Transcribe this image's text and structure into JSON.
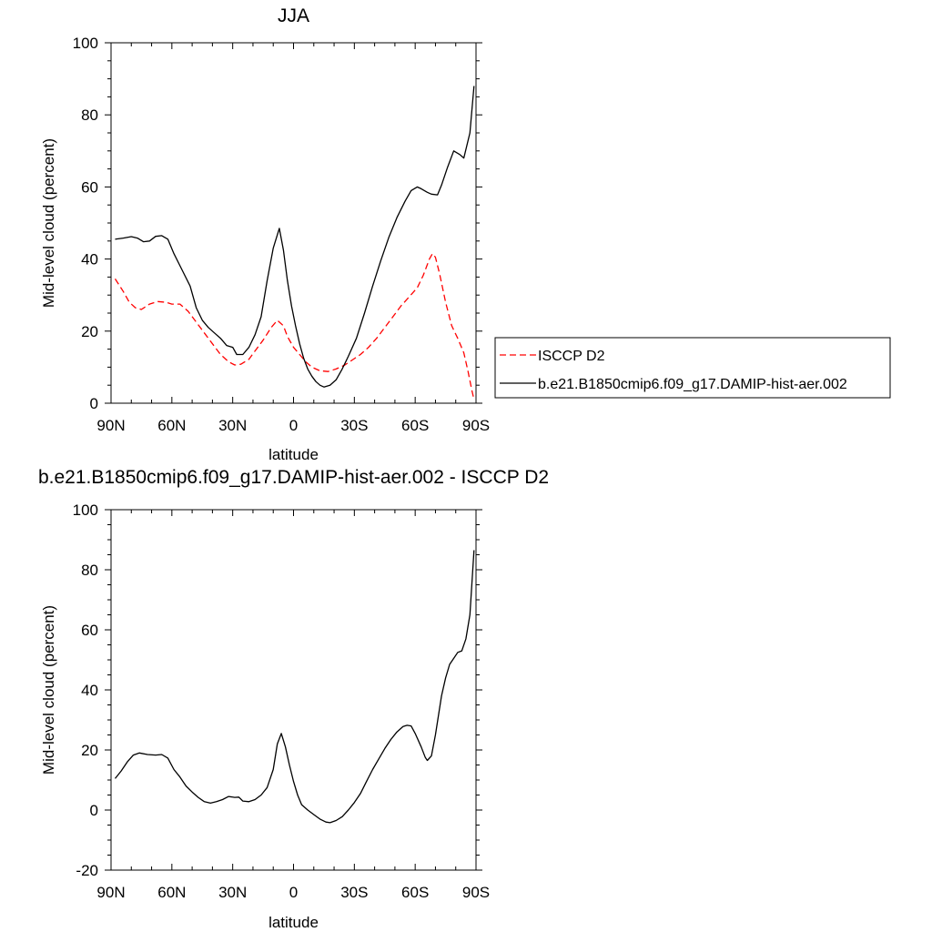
{
  "chart_data": [
    {
      "type": "line",
      "title": "JJA",
      "xlabel": "latitude",
      "ylabel": "Mid-level cloud (percent)",
      "xlim": [
        90,
        -90
      ],
      "ylim": [
        0,
        100
      ],
      "xticks": [
        90,
        60,
        30,
        0,
        -30,
        -60,
        -90
      ],
      "xtick_labels": [
        "90N",
        "60N",
        "30N",
        "0",
        "30S",
        "60S",
        "90S"
      ],
      "yticks": [
        0,
        20,
        40,
        60,
        80,
        100
      ],
      "ytick_labels": [
        "0",
        "20",
        "40",
        "60",
        "80",
        "100"
      ],
      "grid": false,
      "legend_position": "right",
      "series": [
        {
          "name": "ISCCP D2",
          "color": "#ff0000",
          "dash": "dashed",
          "points": [
            [
              88,
              34.5
            ],
            [
              84,
              31
            ],
            [
              81,
              28
            ],
            [
              78,
              26.5
            ],
            [
              75,
              26
            ],
            [
              71,
              27.5
            ],
            [
              67,
              28.2
            ],
            [
              63,
              28
            ],
            [
              60,
              27.5
            ],
            [
              56,
              27.5
            ],
            [
              52,
              25.5
            ],
            [
              48,
              22.5
            ],
            [
              44,
              19.5
            ],
            [
              40,
              16.5
            ],
            [
              36,
              13.5
            ],
            [
              32,
              11.5
            ],
            [
              29,
              10.6
            ],
            [
              26,
              10.8
            ],
            [
              22,
              12.2
            ],
            [
              19,
              14.5
            ],
            [
              15,
              17.5
            ],
            [
              11,
              21
            ],
            [
              8,
              23
            ],
            [
              5,
              21.5
            ],
            [
              3,
              18.5
            ],
            [
              0,
              15.5
            ],
            [
              -3,
              13.5
            ],
            [
              -6,
              11.5
            ],
            [
              -9,
              10
            ],
            [
              -13,
              9
            ],
            [
              -17,
              8.8
            ],
            [
              -21,
              9.5
            ],
            [
              -25,
              10.5
            ],
            [
              -29,
              12
            ],
            [
              -33,
              13.5
            ],
            [
              -37,
              15.5
            ],
            [
              -41,
              18
            ],
            [
              -45,
              21
            ],
            [
              -49,
              24
            ],
            [
              -53,
              27
            ],
            [
              -57,
              29.5
            ],
            [
              -61,
              32
            ],
            [
              -64,
              35.5
            ],
            [
              -67,
              40
            ],
            [
              -68.5,
              41.5
            ],
            [
              -70,
              40.5
            ],
            [
              -72,
              36
            ],
            [
              -75,
              28
            ],
            [
              -78,
              21.5
            ],
            [
              -81,
              18
            ],
            [
              -84,
              14
            ],
            [
              -86,
              9
            ],
            [
              -88,
              3.5
            ],
            [
              -89,
              1
            ]
          ]
        },
        {
          "name": "b.e21.B1850cmip6.f09_g17.DAMIP-hist-aer.002",
          "color": "#000000",
          "dash": "solid",
          "points": [
            [
              88,
              45.5
            ],
            [
              84,
              45.8
            ],
            [
              80,
              46.2
            ],
            [
              77,
              45.8
            ],
            [
              74,
              44.8
            ],
            [
              71,
              45
            ],
            [
              68,
              46.3
            ],
            [
              65,
              46.5
            ],
            [
              62,
              45.5
            ],
            [
              59,
              41.5
            ],
            [
              55,
              37
            ],
            [
              51,
              32.5
            ],
            [
              48,
              26.5
            ],
            [
              45,
              23
            ],
            [
              42,
              21
            ],
            [
              39,
              19.5
            ],
            [
              36,
              18
            ],
            [
              33,
              16
            ],
            [
              30,
              15.5
            ],
            [
              28,
              13.5
            ],
            [
              25,
              13.5
            ],
            [
              22,
              15.5
            ],
            [
              19,
              19
            ],
            [
              16,
              24
            ],
            [
              13,
              34
            ],
            [
              10,
              43
            ],
            [
              7,
              48.5
            ],
            [
              5,
              42.5
            ],
            [
              3,
              34
            ],
            [
              1,
              27
            ],
            [
              -1,
              21.5
            ],
            [
              -3,
              16.5
            ],
            [
              -5,
              12.5
            ],
            [
              -7,
              9.5
            ],
            [
              -9,
              7.5
            ],
            [
              -11,
              6
            ],
            [
              -13,
              5
            ],
            [
              -15,
              4.5
            ],
            [
              -18,
              5
            ],
            [
              -21,
              6.5
            ],
            [
              -24,
              9.5
            ],
            [
              -27,
              13
            ],
            [
              -31,
              18
            ],
            [
              -35,
              25
            ],
            [
              -39,
              32.5
            ],
            [
              -43,
              39.5
            ],
            [
              -47,
              46
            ],
            [
              -51,
              51.5
            ],
            [
              -55,
              56
            ],
            [
              -58,
              59
            ],
            [
              -61,
              60
            ],
            [
              -63,
              59.5
            ],
            [
              -66,
              58.5
            ],
            [
              -68,
              58
            ],
            [
              -71,
              57.8
            ],
            [
              -73,
              60.5
            ],
            [
              -76,
              65.5
            ],
            [
              -79,
              70
            ],
            [
              -82,
              69
            ],
            [
              -84,
              68
            ],
            [
              -87,
              75
            ],
            [
              -89,
              88
            ]
          ]
        }
      ]
    },
    {
      "type": "line",
      "title": "b.e21.B1850cmip6.f09_g17.DAMIP-hist-aer.002 - ISCCP D2",
      "xlabel": "latitude",
      "ylabel": "Mid-level cloud (percent)",
      "xlim": [
        90,
        -90
      ],
      "ylim": [
        -20,
        100
      ],
      "xticks": [
        90,
        60,
        30,
        0,
        -30,
        -60,
        -90
      ],
      "xtick_labels": [
        "90N",
        "60N",
        "30N",
        "0",
        "30S",
        "60S",
        "90S"
      ],
      "yticks": [
        -20,
        0,
        20,
        40,
        60,
        80,
        100
      ],
      "ytick_labels": [
        "-20",
        "0",
        "20",
        "40",
        "60",
        "80",
        "100"
      ],
      "grid": false,
      "series": [
        {
          "color": "#000000",
          "dash": "solid",
          "points": [
            [
              88,
              10.5
            ],
            [
              85,
              13
            ],
            [
              82,
              16
            ],
            [
              79,
              18.3
            ],
            [
              76,
              19
            ],
            [
              72,
              18.5
            ],
            [
              68,
              18.3
            ],
            [
              65,
              18.5
            ],
            [
              62,
              17.3
            ],
            [
              59,
              13.5
            ],
            [
              56,
              11
            ],
            [
              53,
              8
            ],
            [
              50,
              6
            ],
            [
              47,
              4.2
            ],
            [
              44,
              2.8
            ],
            [
              41,
              2.3
            ],
            [
              38,
              2.8
            ],
            [
              35,
              3.5
            ],
            [
              32,
              4.5
            ],
            [
              29,
              4.2
            ],
            [
              27,
              4.3
            ],
            [
              25,
              3
            ],
            [
              22,
              2.8
            ],
            [
              19,
              3.5
            ],
            [
              16,
              5
            ],
            [
              13,
              7.5
            ],
            [
              10,
              13.5
            ],
            [
              8,
              22
            ],
            [
              6,
              25.5
            ],
            [
              4,
              21
            ],
            [
              2,
              15
            ],
            [
              0,
              9.5
            ],
            [
              -2,
              5
            ],
            [
              -4,
              1.8
            ],
            [
              -7,
              0
            ],
            [
              -10,
              -1.5
            ],
            [
              -13,
              -3
            ],
            [
              -16,
              -4
            ],
            [
              -18,
              -4.2
            ],
            [
              -21,
              -3.5
            ],
            [
              -24,
              -2.2
            ],
            [
              -27,
              0
            ],
            [
              -30,
              2.5
            ],
            [
              -33,
              5.5
            ],
            [
              -36,
              9.5
            ],
            [
              -39,
              13.5
            ],
            [
              -42,
              17
            ],
            [
              -45,
              20.5
            ],
            [
              -48,
              23.5
            ],
            [
              -51,
              26
            ],
            [
              -54,
              27.8
            ],
            [
              -56,
              28.2
            ],
            [
              -58,
              28
            ],
            [
              -60,
              25.5
            ],
            [
              -63,
              21
            ],
            [
              -65,
              17.5
            ],
            [
              -66,
              16.5
            ],
            [
              -68,
              18
            ],
            [
              -70,
              25
            ],
            [
              -73,
              38
            ],
            [
              -75,
              44
            ],
            [
              -77,
              48.5
            ],
            [
              -79,
              50.5
            ],
            [
              -81,
              52.5
            ],
            [
              -83,
              53
            ],
            [
              -85,
              57
            ],
            [
              -87,
              65
            ],
            [
              -89,
              86.5
            ]
          ]
        }
      ]
    }
  ]
}
